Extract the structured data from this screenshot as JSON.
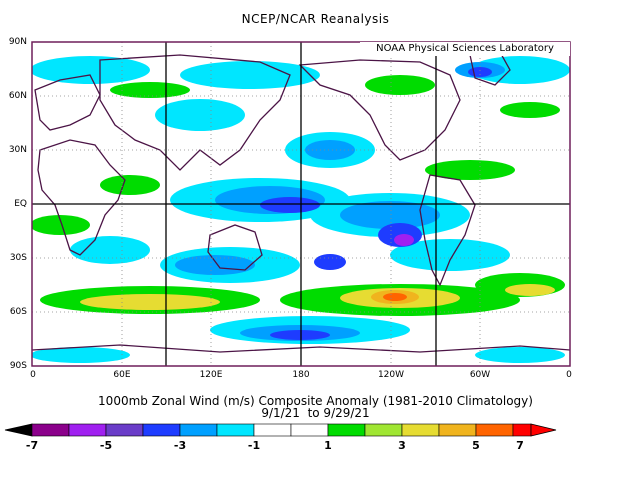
{
  "title": "NCEP/NCAR Reanalysis",
  "credit": "NOAA Physical Sciences Laboratory",
  "latitude_labels": [
    "90N",
    "60N",
    "30N",
    "EQ",
    "30S",
    "60S",
    "90S"
  ],
  "longitude_labels": [
    "0",
    "60E",
    "120E",
    "180",
    "120W",
    "60W",
    "0"
  ],
  "caption_line1": "1000mb Zonal Wind (m/s) Composite Anomaly (1981-2010 Climatology)",
  "caption_line2": "9/1/21  to 9/29/21",
  "colorbar": {
    "labels": [
      "-7",
      "-5",
      "-3",
      "-1",
      "1",
      "3",
      "5",
      "7"
    ],
    "colors": [
      "#000000",
      "#8b008b",
      "#a020f0",
      "#6a3cc8",
      "#1e3cff",
      "#00a0ff",
      "#00e6ff",
      "#ffffff",
      "#ffffff",
      "#00dc00",
      "#a0e632",
      "#e6dc32",
      "#f0b41e",
      "#ff6400",
      "#ff0000"
    ]
  },
  "palette": {
    "frame": "#6e1e5a",
    "coast": "#4b1446",
    "grid": "#000000"
  }
}
